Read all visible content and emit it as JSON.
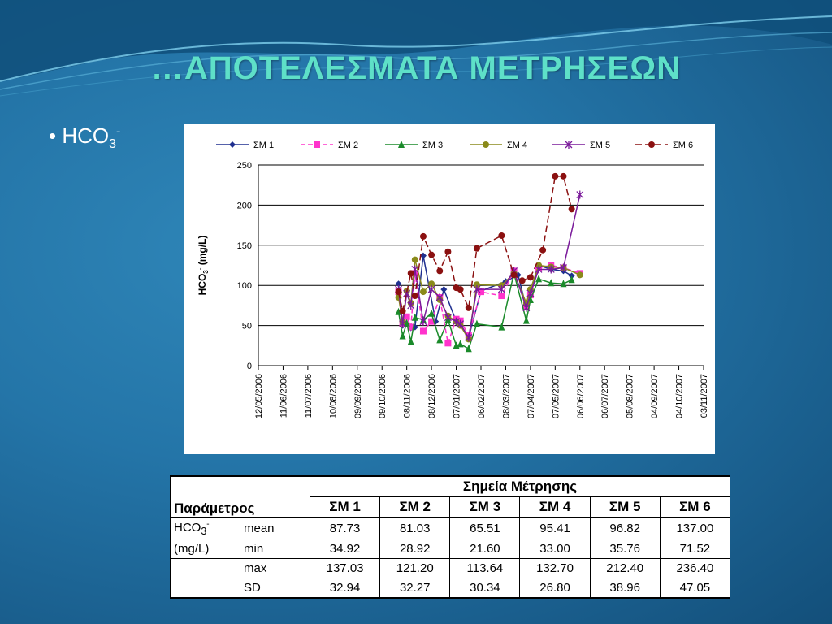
{
  "slide": {
    "title": "…ΑΠΟΤΕΛΕΣΜΑΤΑ ΜΕΤΡΗΣΕΩΝ",
    "bullet_main": "HCO",
    "bullet_sub": "3",
    "bullet_sup": "-"
  },
  "chart_data": {
    "type": "line",
    "ylabel_parts": [
      "HCO",
      "3",
      "-",
      " (mg/L)"
    ],
    "ylim": [
      0,
      250
    ],
    "yticks": [
      "0",
      "50",
      "100",
      "150",
      "200",
      "250"
    ],
    "x_tick_labels": [
      "12/05/2006",
      "11/06/2006",
      "11/07/2006",
      "10/08/2006",
      "09/09/2006",
      "09/10/2006",
      "08/11/2006",
      "08/12/2006",
      "07/01/2007",
      "06/02/2007",
      "08/03/2007",
      "07/04/2007",
      "07/05/2007",
      "06/06/2007",
      "06/07/2007",
      "05/08/2007",
      "04/09/2007",
      "04/10/2007",
      "03/11/2007"
    ],
    "x_range_days": [
      0,
      540
    ],
    "grid": true,
    "legend_position": "top",
    "series": [
      {
        "name": "ΣΜ 1",
        "color": "#1f2f8f",
        "marker": "diamond",
        "dash": "",
        "x": [
          170,
          175,
          185,
          190,
          200,
          215,
          225,
          240,
          245,
          255,
          270,
          300,
          315,
          325,
          330,
          340,
          355,
          370,
          380,
          390
        ],
        "y": [
          102,
          50,
          47,
          48,
          137,
          55,
          95,
          55,
          50,
          35,
          93,
          105,
          113,
          72,
          88,
          125,
          120,
          118,
          112,
          null
        ]
      },
      {
        "name": "ΣΜ 2",
        "color": "#ff33cc",
        "marker": "square",
        "dash": "6,3",
        "x": [
          170,
          175,
          180,
          185,
          190,
          200,
          210,
          220,
          230,
          240,
          245,
          255,
          270,
          295,
          310,
          325,
          330,
          340,
          355,
          370,
          390
        ],
        "y": [
          92,
          52,
          61,
          48,
          115,
          43,
          55,
          85,
          28,
          58,
          56,
          38,
          92,
          87,
          118,
          73,
          88,
          122,
          125,
          122,
          115
        ]
      },
      {
        "name": "ΣΜ 3",
        "color": "#1a8a2a",
        "marker": "triangle",
        "dash": "",
        "x": [
          170,
          175,
          180,
          185,
          190,
          200,
          210,
          220,
          230,
          240,
          245,
          255,
          265,
          295,
          310,
          325,
          330,
          340,
          355,
          370,
          380,
          390
        ],
        "y": [
          67,
          37,
          53,
          30,
          60,
          57,
          65,
          32,
          57,
          25,
          27,
          21,
          52,
          48,
          115,
          56,
          82,
          108,
          103,
          102,
          107,
          null
        ]
      },
      {
        "name": "ΣΜ 4",
        "color": "#8a8a1a",
        "marker": "circle",
        "dash": "",
        "x": [
          170,
          175,
          180,
          185,
          190,
          200,
          210,
          220,
          230,
          240,
          245,
          255,
          265,
          295,
          310,
          325,
          330,
          340,
          355,
          370,
          390
        ],
        "y": [
          85,
          55,
          93,
          78,
          132,
          92,
          102,
          82,
          62,
          55,
          50,
          33,
          101,
          100,
          115,
          78,
          95,
          125,
          123,
          122,
          113
        ]
      },
      {
        "name": "ΣΜ 5",
        "color": "#7a1a9a",
        "marker": "star",
        "dash": "",
        "x": [
          170,
          175,
          180,
          185,
          190,
          200,
          210,
          220,
          230,
          240,
          245,
          255,
          265,
          295,
          310,
          325,
          330,
          340,
          355,
          370,
          390
        ],
        "y": [
          95,
          52,
          90,
          75,
          120,
          55,
          95,
          85,
          60,
          55,
          52,
          35,
          95,
          95,
          118,
          72,
          90,
          120,
          120,
          122,
          213
        ]
      },
      {
        "name": "ΣΜ 6",
        "color": "#8b1010",
        "marker": "circle",
        "dash": "8,4",
        "x": [
          170,
          175,
          185,
          190,
          200,
          210,
          220,
          230,
          240,
          245,
          255,
          265,
          295,
          310,
          320,
          330,
          345,
          360,
          370,
          380,
          390
        ],
        "y": [
          92,
          68,
          115,
          87,
          161,
          138,
          118,
          142,
          97,
          95,
          72,
          146,
          162,
          113,
          106,
          110,
          144,
          236,
          236,
          195,
          null
        ]
      }
    ]
  },
  "table": {
    "header_group": "Σημεία Μέτρησης",
    "param_header": "Παράμετρος",
    "columns": [
      "ΣΜ 1",
      "ΣΜ 2",
      "ΣΜ 3",
      "ΣΜ 4",
      "ΣΜ 5",
      "ΣΜ 6"
    ],
    "param_name_main": "HCO",
    "param_name_sub": "3",
    "param_name_sup": "-",
    "param_unit": "(mg/L)",
    "rows": [
      {
        "stat": "mean",
        "values": [
          "87.73",
          "81.03",
          "65.51",
          "95.41",
          "96.82",
          "137.00"
        ]
      },
      {
        "stat": "min",
        "values": [
          "34.92",
          "28.92",
          "21.60",
          "33.00",
          "35.76",
          "71.52"
        ]
      },
      {
        "stat": "max",
        "values": [
          "137.03",
          "121.20",
          "113.64",
          "132.70",
          "212.40",
          "236.40"
        ]
      },
      {
        "stat": "SD",
        "values": [
          "32.94",
          "32.27",
          "30.34",
          "26.80",
          "38.96",
          "47.05"
        ]
      }
    ]
  },
  "colors": {
    "title": "#5ee0c8",
    "background": "#2475a8"
  }
}
